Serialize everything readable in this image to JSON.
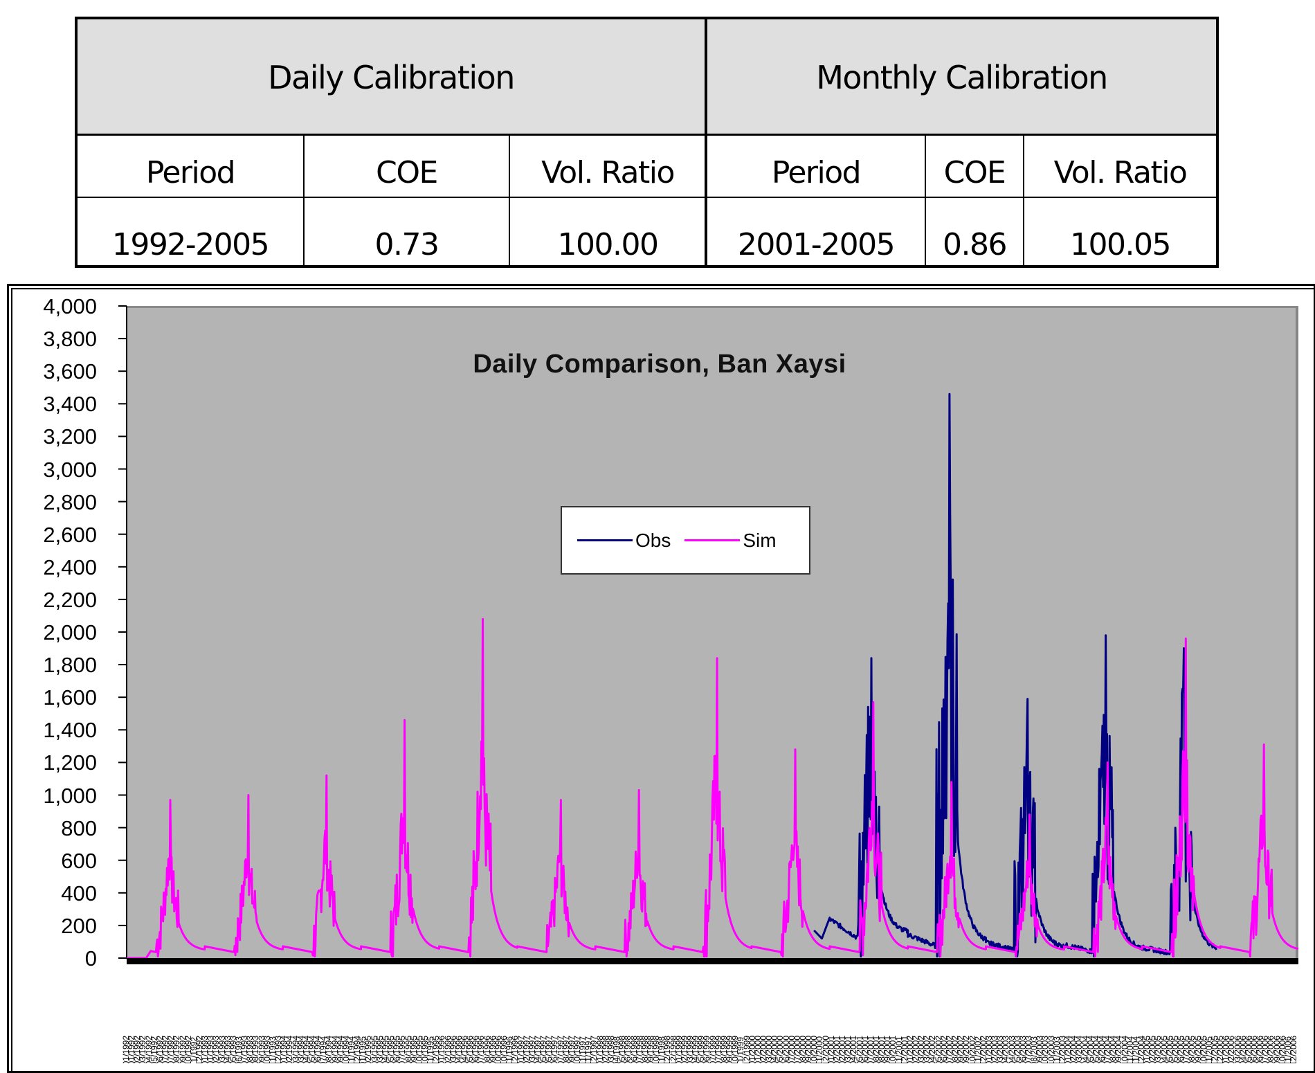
{
  "table": {
    "groups": [
      {
        "label": "Daily Calibration",
        "columns": [
          "Period",
          "COE",
          "Vol. Ratio"
        ],
        "values": [
          "1992-2005",
          "0.73",
          "100.00"
        ]
      },
      {
        "label": "Monthly Calibration",
        "columns": [
          "Period",
          "COE",
          "Vol. Ratio"
        ],
        "values": [
          "2001-2005",
          "0.86",
          "100.05"
        ]
      }
    ]
  },
  "chart_data": {
    "type": "line",
    "title": "Daily Comparison, Ban Xaysi",
    "xlabel": "",
    "ylabel": "",
    "ylim": [
      0,
      4000
    ],
    "yticks": [
      0,
      200,
      400,
      600,
      800,
      1000,
      1200,
      1400,
      1600,
      1800,
      2000,
      2200,
      2400,
      2600,
      2800,
      3000,
      3200,
      3400,
      3600,
      3800,
      4000
    ],
    "ytick_labels": [
      "0",
      "200",
      "400",
      "600",
      "800",
      "1,000",
      "1,200",
      "1,400",
      "1,600",
      "1,800",
      "2,000",
      "2,200",
      "2,400",
      "2,600",
      "2,800",
      "3,000",
      "3,200",
      "3,400",
      "3,600",
      "3,800",
      "4,000"
    ],
    "x_range": [
      "01/01/1992",
      "31/12/2006"
    ],
    "x_tick_labels_note": "dense rotated dd/mm/yyyy date labels, first visible: 01/01/1992",
    "x_tick_labels_sample": [
      "01/01/1992"
    ],
    "grid": false,
    "legend": {
      "position": "inside-center",
      "entries": [
        "Obs",
        "Sim"
      ]
    },
    "series": [
      {
        "name": "Obs",
        "color": "#000080",
        "annual_peaks": [
          {
            "year": 2001,
            "peak": 1840
          },
          {
            "year": 2002,
            "peak": 3460
          },
          {
            "year": 2003,
            "peak": 1590
          },
          {
            "year": 2004,
            "peak": 1980
          },
          {
            "year": 2005,
            "peak": 1900
          }
        ],
        "start": "2000-Q4",
        "end": "2005-12",
        "baseflow_approx": [
          150,
          90,
          60,
          50,
          40
        ]
      },
      {
        "name": "Sim",
        "color": "#ff00ff",
        "annual_peaks": [
          {
            "year": 1992,
            "peak": 970
          },
          {
            "year": 1993,
            "peak": 1000
          },
          {
            "year": 1994,
            "peak": 1120
          },
          {
            "year": 1995,
            "peak": 1460
          },
          {
            "year": 1996,
            "peak": 2080
          },
          {
            "year": 1997,
            "peak": 970
          },
          {
            "year": 1998,
            "peak": 1030
          },
          {
            "year": 1999,
            "peak": 1840
          },
          {
            "year": 2000,
            "peak": 1280
          },
          {
            "year": 2001,
            "peak": 1570
          },
          {
            "year": 2002,
            "peak": 1080
          },
          {
            "year": 2003,
            "peak": 880
          },
          {
            "year": 2004,
            "peak": 1200
          },
          {
            "year": 2005,
            "peak": 1960
          },
          {
            "year": 2006,
            "peak": 1310
          }
        ],
        "dry_season_min_approx": 40
      }
    ]
  },
  "colors": {
    "plot_bg": "#b4b4b4",
    "obs": "#000080",
    "sim": "#ff00ff",
    "table_header_bg": "#dfdfdf"
  }
}
